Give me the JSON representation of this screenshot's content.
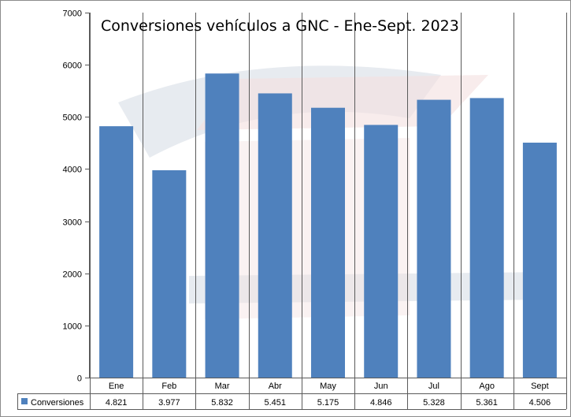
{
  "chart_data": {
    "type": "bar",
    "title": "Conversiones vehículos a GNC - Ene-Sept. 2023",
    "categories": [
      "Ene",
      "Feb",
      "Mar",
      "Abr",
      "May",
      "Jun",
      "Jul",
      "Ago",
      "Sept"
    ],
    "series": [
      {
        "name": "Conversiones",
        "values": [
          4821,
          3977,
          5832,
          5451,
          5175,
          4846,
          5328,
          5361,
          4506
        ],
        "labels": [
          "4.821",
          "3.977",
          "5.832",
          "5.451",
          "5.175",
          "4.846",
          "5.328",
          "5.361",
          "4.506"
        ],
        "color": "#4f81bd"
      }
    ],
    "ylim": [
      0,
      7000
    ],
    "yticks": [
      0,
      1000,
      2000,
      3000,
      4000,
      5000,
      6000,
      7000
    ],
    "grid": "vertical",
    "legend": "data-table-left",
    "gridline_color": "#5a5a5a"
  }
}
